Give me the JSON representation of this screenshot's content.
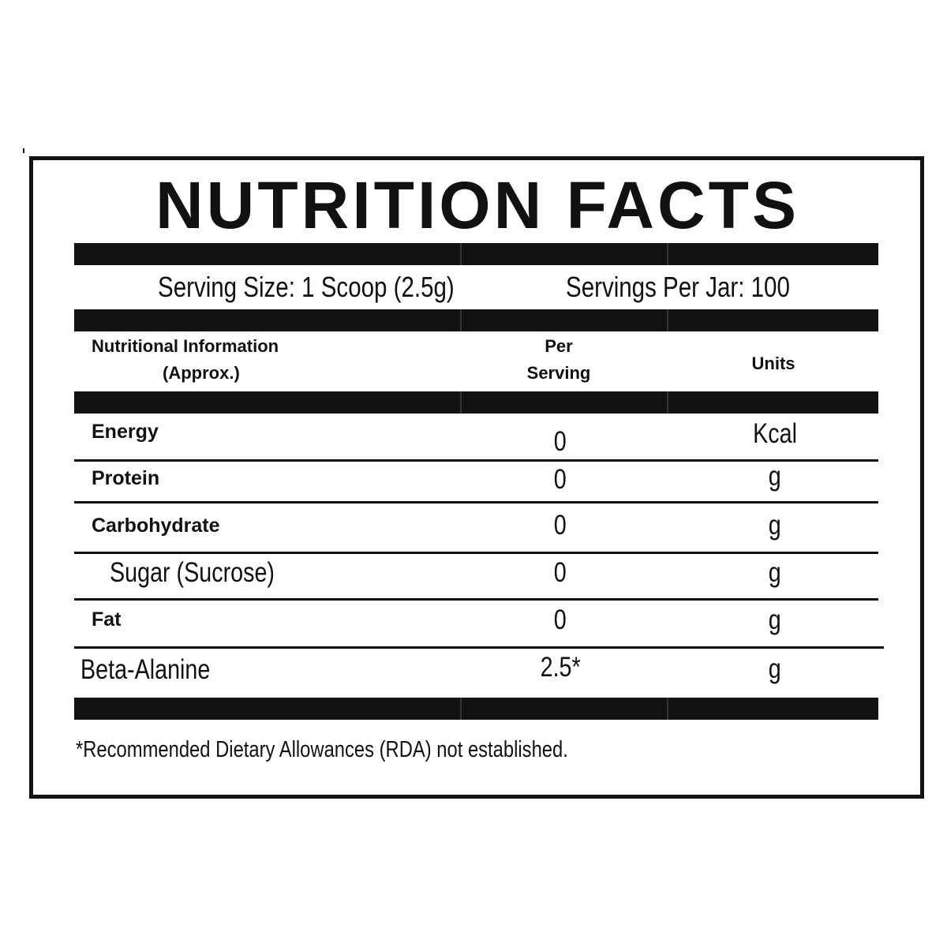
{
  "title": "NUTRITION FACTS",
  "serving": {
    "size": "Serving Size: 1 Scoop (2.5g)",
    "per_container": "Servings Per Jar: 100"
  },
  "columns": {
    "info_line1": "Nutritional Information",
    "info_line2": "(Approx.)",
    "per_line1": "Per",
    "per_line2": "Serving",
    "units": "Units"
  },
  "rows": [
    {
      "name": "Energy",
      "value": "0",
      "unit": "Kcal"
    },
    {
      "name": "Protein",
      "value": "0",
      "unit": "g"
    },
    {
      "name": "Carbohydrate",
      "value": "0",
      "unit": "g"
    },
    {
      "name": "Sugar (Sucrose)",
      "value": "0",
      "unit": "g"
    },
    {
      "name": "Fat",
      "value": "0",
      "unit": "g"
    },
    {
      "name": "Beta-Alanine",
      "value": "2.5*",
      "unit": "g"
    }
  ],
  "footnote": "*Recommended Dietary Allowances (RDA) not established.",
  "colors": {
    "ink": "#111111",
    "background": "#ffffff"
  }
}
